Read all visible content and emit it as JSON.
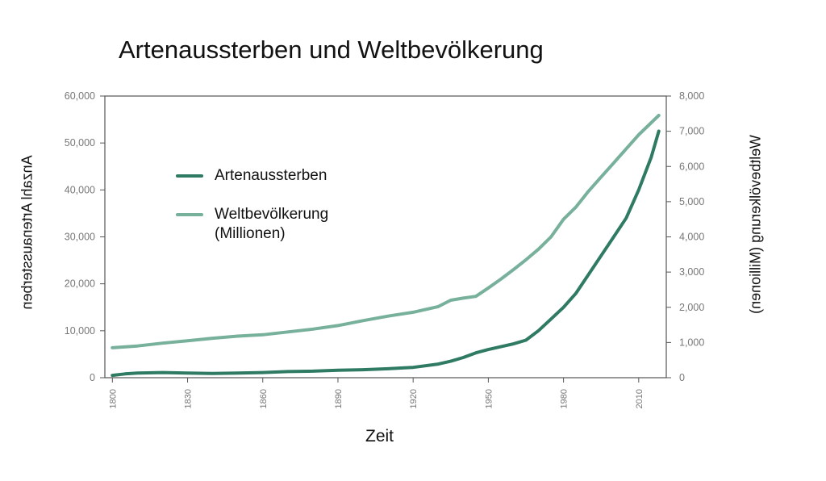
{
  "chart_data": {
    "type": "line",
    "title": "Artenaussterben und Weltbevölkerung",
    "xlabel": "Zeit",
    "ylabel_left": "Anzahl Artenaussterben",
    "ylabel_right": "Weltbevölkerung (Millionen)",
    "xlim": [
      1797,
      2021
    ],
    "ylim_left": [
      0,
      60000
    ],
    "ylim_right": [
      0,
      8000
    ],
    "x_ticks": [
      "1800",
      "1830",
      "1860",
      "1890",
      "1920",
      "1950",
      "1980",
      "2010"
    ],
    "y_ticks_left": [
      "0",
      "10,000",
      "20,000",
      "30,000",
      "40,000",
      "50,000",
      "60,000"
    ],
    "y_ticks_right": [
      "0",
      "1,000",
      "2,000",
      "3,000",
      "4,000",
      "5,000",
      "6,000",
      "7,000",
      "8,000"
    ],
    "grid": false,
    "legend_position": "upper-left",
    "series": [
      {
        "name": "Artenaussterben",
        "axis": "left",
        "color": "#2e7a62",
        "x": [
          1800,
          1805,
          1810,
          1820,
          1830,
          1840,
          1850,
          1860,
          1870,
          1880,
          1890,
          1900,
          1910,
          1920,
          1930,
          1935,
          1940,
          1945,
          1950,
          1955,
          1960,
          1965,
          1970,
          1975,
          1980,
          1985,
          1990,
          1995,
          2000,
          2005,
          2010,
          2015,
          2018
        ],
        "values": [
          500,
          800,
          1000,
          1100,
          1000,
          900,
          1000,
          1100,
          1300,
          1400,
          1600,
          1700,
          1900,
          2200,
          2900,
          3500,
          4300,
          5300,
          6000,
          6600,
          7200,
          8000,
          10000,
          12500,
          15000,
          18000,
          22000,
          26000,
          30000,
          34000,
          40000,
          47000,
          52500
        ]
      },
      {
        "name": "Weltbevölkerung (Millionen)",
        "axis": "right",
        "color": "#77b09b",
        "x": [
          1800,
          1810,
          1820,
          1830,
          1840,
          1850,
          1860,
          1870,
          1880,
          1890,
          1900,
          1910,
          1920,
          1930,
          1935,
          1940,
          1945,
          1950,
          1955,
          1960,
          1965,
          1970,
          1975,
          1980,
          1985,
          1990,
          1995,
          2000,
          2005,
          2010,
          2018
        ],
        "values": [
          850,
          900,
          980,
          1050,
          1120,
          1180,
          1220,
          1300,
          1380,
          1480,
          1620,
          1750,
          1860,
          2020,
          2200,
          2260,
          2310,
          2550,
          2800,
          3070,
          3350,
          3650,
          4000,
          4500,
          4850,
          5300,
          5700,
          6100,
          6500,
          6900,
          7450
        ]
      }
    ]
  }
}
